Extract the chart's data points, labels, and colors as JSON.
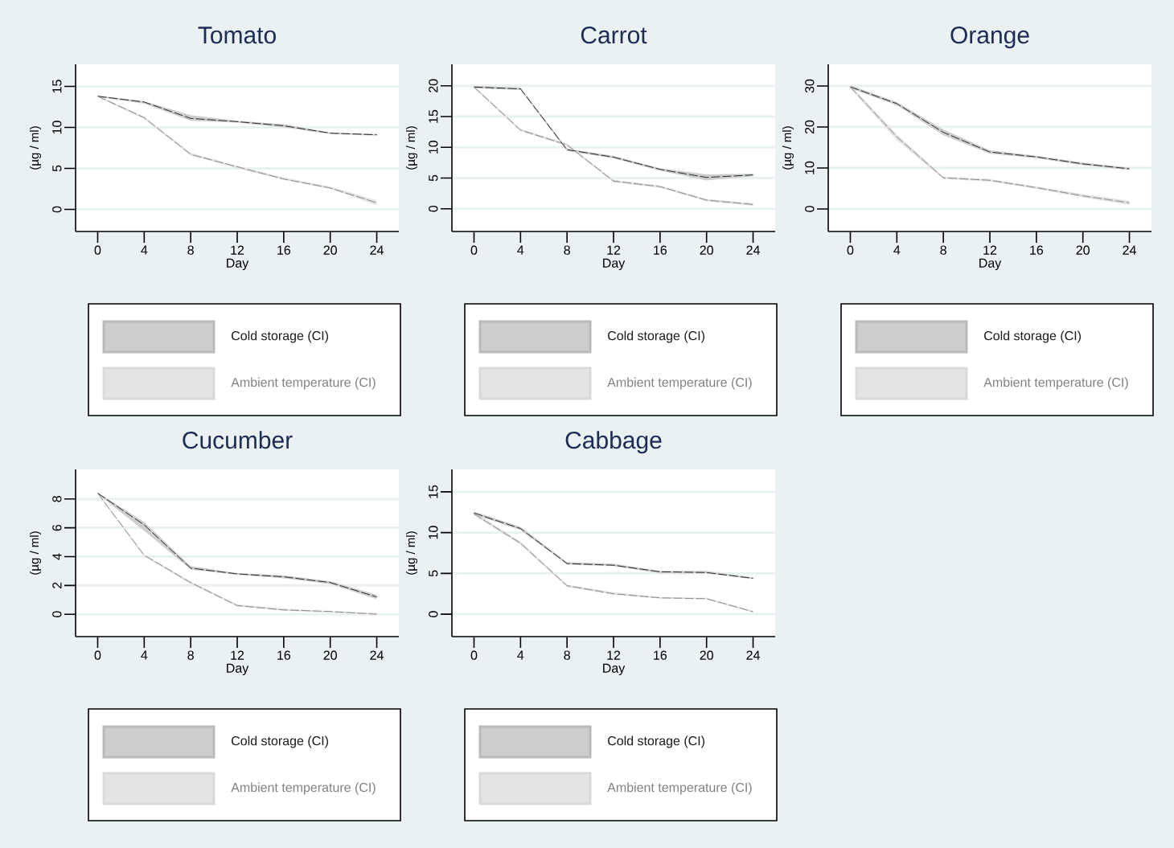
{
  "chart_data": [
    {
      "type": "line",
      "title": "Tomato",
      "xlabel": "Day",
      "ylabel": "(µg / ml)",
      "x": [
        0,
        4,
        8,
        12,
        16,
        20,
        24
      ],
      "xlim": [
        -1.9,
        25.9
      ],
      "ylim": [
        -2.7,
        17.7
      ],
      "xticks": [
        0,
        4,
        8,
        12,
        16,
        20,
        24
      ],
      "yticks": [
        0,
        5,
        10,
        15
      ],
      "grid": "y",
      "legend": "bottom",
      "line_style": "dashed",
      "series": [
        {
          "name": "Cold storage (CI)",
          "color": "#1a1a1a",
          "values": [
            13.8,
            13.1,
            11.1,
            10.7,
            10.2,
            9.3,
            9.1
          ],
          "lower": [
            13.7,
            12.9,
            10.8,
            10.6,
            10.0,
            9.2,
            9.0
          ],
          "upper": [
            13.9,
            13.2,
            11.5,
            10.8,
            10.4,
            9.4,
            9.2
          ]
        },
        {
          "name": "Ambient temperature (CI)",
          "color": "#808080",
          "values": [
            13.8,
            11.2,
            6.7,
            5.2,
            3.7,
            2.6,
            0.8
          ],
          "lower": [
            13.7,
            11.0,
            6.6,
            5.0,
            3.6,
            2.5,
            0.5
          ],
          "upper": [
            13.9,
            11.3,
            6.9,
            5.3,
            3.9,
            2.8,
            1.1
          ]
        }
      ]
    },
    {
      "type": "line",
      "title": "Carrot",
      "xlabel": "Day",
      "ylabel": "(µg / ml)",
      "x": [
        0,
        4,
        8,
        12,
        16,
        20,
        24
      ],
      "xlim": [
        -1.9,
        25.9
      ],
      "ylim": [
        -3.7,
        23.5
      ],
      "xticks": [
        0,
        4,
        8,
        12,
        16,
        20,
        24
      ],
      "yticks": [
        0,
        5,
        10,
        15,
        20
      ],
      "grid": "y",
      "legend": "bottom",
      "line_style": "dashed",
      "series": [
        {
          "name": "Cold storage (CI)",
          "color": "#1a1a1a",
          "values": [
            19.8,
            19.5,
            9.6,
            8.4,
            6.4,
            5.1,
            5.5
          ],
          "lower": [
            19.6,
            19.3,
            9.4,
            8.2,
            6.2,
            4.6,
            5.3
          ],
          "upper": [
            20.0,
            19.7,
            9.8,
            8.6,
            6.6,
            5.6,
            5.7
          ]
        },
        {
          "name": "Ambient temperature (CI)",
          "color": "#808080",
          "values": [
            19.8,
            12.8,
            10.4,
            4.5,
            3.6,
            1.4,
            0.7
          ],
          "lower": [
            19.6,
            12.6,
            10.2,
            4.3,
            3.4,
            1.2,
            0.5
          ],
          "upper": [
            20.0,
            13.0,
            10.6,
            4.7,
            3.8,
            1.6,
            0.9
          ]
        }
      ]
    },
    {
      "type": "line",
      "title": "Orange",
      "xlabel": "Day",
      "ylabel": "(µg / ml)",
      "x": [
        0,
        4,
        8,
        12,
        16,
        20,
        24
      ],
      "xlim": [
        -1.9,
        25.9
      ],
      "ylim": [
        -5.5,
        35.3
      ],
      "xticks": [
        0,
        4,
        8,
        12,
        16,
        20,
        24
      ],
      "yticks": [
        0,
        10,
        20,
        30
      ],
      "grid": "y",
      "legend": "bottom",
      "line_style": "dashed",
      "series": [
        {
          "name": "Cold storage (CI)",
          "color": "#1a1a1a",
          "values": [
            29.8,
            25.7,
            18.7,
            13.9,
            12.7,
            11.0,
            9.8
          ],
          "lower": [
            29.4,
            25.3,
            18.0,
            13.5,
            12.4,
            10.7,
            9.5
          ],
          "upper": [
            30.2,
            26.1,
            19.4,
            14.3,
            13.0,
            11.3,
            10.1
          ]
        },
        {
          "name": "Ambient temperature (CI)",
          "color": "#808080",
          "values": [
            29.8,
            17.6,
            7.6,
            7.0,
            5.2,
            3.2,
            1.5
          ],
          "lower": [
            29.4,
            16.8,
            7.3,
            6.7,
            4.9,
            2.8,
            1.0
          ],
          "upper": [
            30.2,
            18.2,
            7.9,
            7.3,
            5.5,
            3.6,
            2.0
          ]
        }
      ]
    },
    {
      "type": "line",
      "title": "Cucumber",
      "xlabel": "Day",
      "ylabel": "(µg / ml)",
      "x": [
        0,
        4,
        8,
        12,
        16,
        20,
        24
      ],
      "xlim": [
        -1.9,
        25.9
      ],
      "ylim": [
        -1.55,
        10.05
      ],
      "xticks": [
        0,
        4,
        8,
        12,
        16,
        20,
        24
      ],
      "yticks": [
        0,
        2,
        4,
        6,
        8
      ],
      "grid": "y",
      "legend": "bottom",
      "line_style": "dashed",
      "series": [
        {
          "name": "Cold storage (CI)",
          "color": "#1a1a1a",
          "values": [
            8.4,
            6.2,
            3.2,
            2.8,
            2.6,
            2.2,
            1.2
          ],
          "lower": [
            8.35,
            5.8,
            3.1,
            2.75,
            2.5,
            2.1,
            1.05
          ],
          "upper": [
            8.45,
            6.4,
            3.35,
            2.85,
            2.7,
            2.3,
            1.35
          ]
        },
        {
          "name": "Ambient temperature (CI)",
          "color": "#808080",
          "values": [
            8.4,
            4.1,
            2.2,
            0.6,
            0.3,
            0.2,
            0.0
          ],
          "lower": [
            8.35,
            4.0,
            2.1,
            0.55,
            0.25,
            0.1,
            0.0
          ],
          "upper": [
            8.45,
            4.15,
            2.25,
            0.7,
            0.4,
            0.2,
            0.1
          ]
        }
      ]
    },
    {
      "type": "line",
      "title": "Cabbage",
      "xlabel": "Day",
      "ylabel": "(µg / ml)",
      "x": [
        0,
        4,
        8,
        12,
        16,
        20,
        24
      ],
      "xlim": [
        -1.9,
        25.9
      ],
      "ylim": [
        -2.75,
        17.75
      ],
      "xticks": [
        0,
        4,
        8,
        12,
        16,
        20,
        24
      ],
      "yticks": [
        0,
        5,
        10,
        15
      ],
      "grid": "y",
      "legend": "bottom",
      "line_style": "dashed",
      "series": [
        {
          "name": "Cold storage (CI)",
          "color": "#1a1a1a",
          "values": [
            12.4,
            10.5,
            6.2,
            6.0,
            5.2,
            5.1,
            4.4
          ],
          "lower": [
            12.2,
            10.3,
            6.1,
            5.9,
            5.0,
            5.0,
            4.3
          ],
          "upper": [
            12.6,
            10.7,
            6.4,
            6.2,
            5.3,
            5.3,
            4.5
          ]
        },
        {
          "name": "Ambient temperature (CI)",
          "color": "#808080",
          "values": [
            12.3,
            8.7,
            3.5,
            2.5,
            2.0,
            1.9,
            0.3
          ],
          "lower": [
            12.1,
            8.5,
            3.3,
            2.4,
            1.9,
            1.8,
            0.2
          ],
          "upper": [
            12.5,
            8.9,
            3.6,
            2.7,
            2.1,
            2.0,
            0.4
          ]
        }
      ]
    }
  ]
}
